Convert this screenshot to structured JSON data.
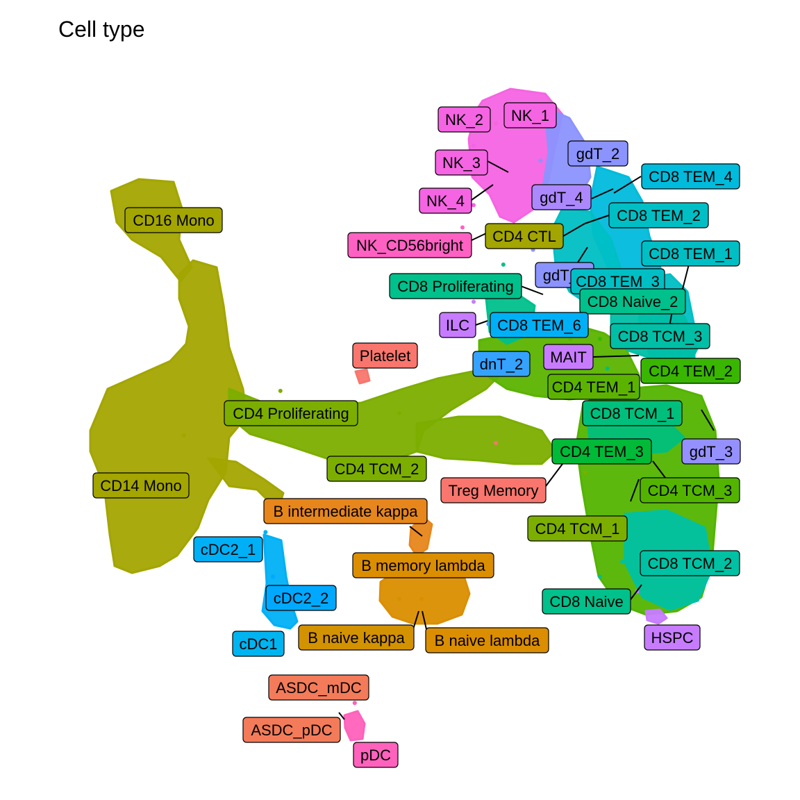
{
  "title": "Cell type",
  "chart_data": {
    "type": "scatter",
    "title": "Cell type",
    "xlabel": "",
    "ylabel": "",
    "axes_visible": false,
    "grid": false,
    "legend": "none",
    "label_style": "repelled boxed labels with leader lines",
    "clusters": [
      {
        "label": "CD16 Mono",
        "color": "#a3a500",
        "x": 0.163,
        "y": 0.75
      },
      {
        "label": "CD14 Mono",
        "color": "#a3a500",
        "x": 0.21,
        "y": 0.47
      },
      {
        "label": "NK_1",
        "color": "#f564e3",
        "x": 0.63,
        "y": 0.89
      },
      {
        "label": "NK_2",
        "color": "#f564e3",
        "x": 0.6,
        "y": 0.86
      },
      {
        "label": "NK_3",
        "color": "#f564e3",
        "x": 0.6,
        "y": 0.82
      },
      {
        "label": "NK_4",
        "color": "#f564e3",
        "x": 0.6,
        "y": 0.78
      },
      {
        "label": "NK_CD56bright",
        "color": "#ff61c3",
        "x": 0.585,
        "y": 0.75
      },
      {
        "label": "gdT_2",
        "color": "#8b93ff",
        "x": 0.69,
        "y": 0.84
      },
      {
        "label": "gdT_4",
        "color": "#ac88ff",
        "x": 0.69,
        "y": 0.8
      },
      {
        "label": "CD8 TEM_4",
        "color": "#00bbdc",
        "x": 0.73,
        "y": 0.79
      },
      {
        "label": "CD8 TEM_2",
        "color": "#00bfc4",
        "x": 0.72,
        "y": 0.75
      },
      {
        "label": "CD4 CTL",
        "color": "#a3a500",
        "x": 0.67,
        "y": 0.75
      },
      {
        "label": "CD8 TEM_1",
        "color": "#00bfc4",
        "x": 0.79,
        "y": 0.71
      },
      {
        "label": "gdT_1",
        "color": "#8b93ff",
        "x": 0.68,
        "y": 0.72
      },
      {
        "label": "CD8 Proliferating",
        "color": "#00c08b",
        "x": 0.64,
        "y": 0.7
      },
      {
        "label": "CD8 TEM_3",
        "color": "#00bfc4",
        "x": 0.72,
        "y": 0.69
      },
      {
        "label": "CD8 Naive_2",
        "color": "#00c08b",
        "x": 0.73,
        "y": 0.68
      },
      {
        "label": "ILC",
        "color": "#c77cff",
        "x": 0.6,
        "y": 0.65
      },
      {
        "label": "CD8 TEM_6",
        "color": "#00b0f6",
        "x": 0.62,
        "y": 0.66
      },
      {
        "label": "CD8 TCM_3",
        "color": "#00bfa6",
        "x": 0.75,
        "y": 0.65
      },
      {
        "label": "MAIT",
        "color": "#c77cff",
        "x": 0.74,
        "y": 0.62
      },
      {
        "label": "dnT_2",
        "color": "#35a2ff",
        "x": 0.62,
        "y": 0.62
      },
      {
        "label": "Platelet",
        "color": "#f8766d",
        "x": 0.44,
        "y": 0.58
      },
      {
        "label": "CD4 TEM_2",
        "color": "#39b600",
        "x": 0.77,
        "y": 0.6
      },
      {
        "label": "CD4 TEM_1",
        "color": "#5bb300",
        "x": 0.73,
        "y": 0.6
      },
      {
        "label": "CD4 Proliferating",
        "color": "#7cae00",
        "x": 0.34,
        "y": 0.53
      },
      {
        "label": "CD8 TCM_1",
        "color": "#00bf7d",
        "x": 0.78,
        "y": 0.56
      },
      {
        "label": "gdT_3",
        "color": "#9590ff",
        "x": 0.85,
        "y": 0.5
      },
      {
        "label": "CD4 TEM_3",
        "color": "#00ba38",
        "x": 0.75,
        "y": 0.5
      },
      {
        "label": "CD4 TCM_2",
        "color": "#7cae00",
        "x": 0.5,
        "y": 0.5
      },
      {
        "label": "Treg Memory",
        "color": "#f8766d",
        "x": 0.63,
        "y": 0.46
      },
      {
        "label": "CD4 TCM_3",
        "color": "#53b400",
        "x": 0.8,
        "y": 0.45
      },
      {
        "label": "CD4 TCM_1",
        "color": "#7cae00",
        "x": 0.75,
        "y": 0.42
      },
      {
        "label": "B intermediate kappa",
        "color": "#e7861b",
        "x": 0.51,
        "y": 0.37
      },
      {
        "label": "cDC2_1",
        "color": "#00b0f6",
        "x": 0.32,
        "y": 0.34
      },
      {
        "label": "B memory lambda",
        "color": "#db8e00",
        "x": 0.51,
        "y": 0.3
      },
      {
        "label": "cDC2_2",
        "color": "#00a9ff",
        "x": 0.33,
        "y": 0.28
      },
      {
        "label": "CD8 TCM_2",
        "color": "#00c1a3",
        "x": 0.8,
        "y": 0.3
      },
      {
        "label": "CD8 Naive",
        "color": "#00c08b",
        "x": 0.77,
        "y": 0.28
      },
      {
        "label": "B naive kappa",
        "color": "#d39200",
        "x": 0.5,
        "y": 0.25
      },
      {
        "label": "B naive lambda",
        "color": "#db8e00",
        "x": 0.53,
        "y": 0.25
      },
      {
        "label": "cDC1",
        "color": "#00b4f0",
        "x": 0.34,
        "y": 0.26
      },
      {
        "label": "HSPC",
        "color": "#c77cff",
        "x": 0.82,
        "y": 0.26
      },
      {
        "label": "ASDC_mDC",
        "color": "#f37b59",
        "x": 0.43,
        "y": 0.13
      },
      {
        "label": "ASDC_pDC",
        "color": "#f37b59",
        "x": 0.44,
        "y": 0.11
      },
      {
        "label": "pDC",
        "color": "#ff62bc",
        "x": 0.44,
        "y": 0.11
      }
    ]
  }
}
